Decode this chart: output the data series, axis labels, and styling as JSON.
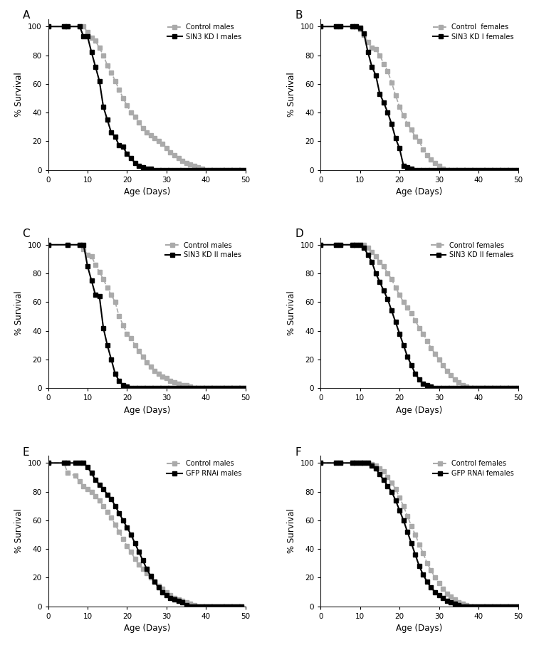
{
  "panels": [
    {
      "label": "A",
      "legend1": "Control males",
      "legend2": "SIN3 KD I males",
      "control": {
        "x": [
          0,
          4,
          5,
          8,
          9,
          10,
          11,
          12,
          13,
          14,
          15,
          16,
          17,
          18,
          19,
          20,
          21,
          22,
          23,
          24,
          25,
          26,
          27,
          28,
          29,
          30,
          31,
          32,
          33,
          34,
          35,
          36,
          37,
          38,
          39,
          40,
          41,
          42,
          43,
          44,
          45,
          46,
          47,
          48,
          49,
          50
        ],
        "y": [
          100,
          100,
          100,
          100,
          100,
          96,
          92,
          90,
          85,
          80,
          73,
          68,
          62,
          56,
          50,
          45,
          40,
          37,
          33,
          29,
          26,
          24,
          22,
          20,
          18,
          15,
          12,
          10,
          8,
          6,
          5,
          4,
          3,
          2,
          1,
          0,
          0,
          0,
          0,
          0,
          0,
          0,
          0,
          0,
          0,
          0
        ]
      },
      "kd": {
        "x": [
          0,
          4,
          5,
          8,
          9,
          10,
          11,
          12,
          13,
          14,
          15,
          16,
          17,
          18,
          19,
          20,
          21,
          22,
          23,
          24,
          25,
          26,
          27,
          28,
          29,
          30,
          31,
          32,
          33,
          34,
          35,
          36,
          37,
          38,
          39,
          40,
          41,
          42,
          43,
          44,
          45,
          46,
          47,
          48,
          49,
          50
        ],
        "y": [
          100,
          100,
          100,
          100,
          93,
          93,
          82,
          72,
          62,
          44,
          35,
          26,
          23,
          17,
          16,
          11,
          8,
          5,
          3,
          2,
          1,
          1,
          0,
          0,
          0,
          0,
          0,
          0,
          0,
          0,
          0,
          0,
          0,
          0,
          0,
          0,
          0,
          0,
          0,
          0,
          0,
          0,
          0,
          0,
          0,
          0
        ]
      },
      "xlim": [
        0,
        50
      ],
      "xlabel": "Age (Days)",
      "ylabel": "% Survival"
    },
    {
      "label": "B",
      "legend1": "Control  females",
      "legend2": "SIN3 KD I females",
      "control": {
        "x": [
          0,
          4,
          5,
          8,
          9,
          10,
          11,
          12,
          13,
          14,
          15,
          16,
          17,
          18,
          19,
          20,
          21,
          22,
          23,
          24,
          25,
          26,
          27,
          28,
          29,
          30,
          31,
          32,
          33,
          34,
          35,
          36,
          37,
          38,
          39,
          40,
          41,
          42,
          43,
          44,
          45,
          46,
          47,
          48,
          49,
          50
        ],
        "y": [
          100,
          100,
          100,
          100,
          100,
          98,
          94,
          89,
          85,
          84,
          80,
          74,
          69,
          61,
          52,
          44,
          38,
          32,
          28,
          23,
          20,
          14,
          10,
          7,
          5,
          3,
          1,
          0,
          0,
          0,
          0,
          0,
          0,
          0,
          0,
          0,
          0,
          0,
          0,
          0,
          0,
          0,
          0,
          0,
          0,
          0
        ]
      },
      "kd": {
        "x": [
          0,
          4,
          5,
          8,
          9,
          10,
          11,
          12,
          13,
          14,
          15,
          16,
          17,
          18,
          19,
          20,
          21,
          22,
          23,
          24,
          25,
          26,
          27,
          28,
          29,
          30,
          31,
          32,
          33,
          34,
          35,
          36,
          37,
          38,
          39,
          40,
          41,
          42,
          43,
          44,
          45,
          46,
          47,
          48,
          49,
          50
        ],
        "y": [
          100,
          100,
          100,
          100,
          100,
          99,
          95,
          82,
          72,
          66,
          53,
          47,
          40,
          32,
          22,
          15,
          3,
          2,
          1,
          0,
          0,
          0,
          0,
          0,
          0,
          0,
          0,
          0,
          0,
          0,
          0,
          0,
          0,
          0,
          0,
          0,
          0,
          0,
          0,
          0,
          0,
          0,
          0,
          0,
          0,
          0
        ]
      },
      "xlim": [
        0,
        50
      ],
      "xlabel": "Age (Days)",
      "ylabel": "% Survival"
    },
    {
      "label": "C",
      "legend1": "Control males",
      "legend2": "SIN3 KD II males",
      "control": {
        "x": [
          0,
          5,
          8,
          9,
          10,
          11,
          12,
          13,
          14,
          15,
          16,
          17,
          18,
          19,
          20,
          21,
          22,
          23,
          24,
          25,
          26,
          27,
          28,
          29,
          30,
          31,
          32,
          33,
          34,
          35,
          36,
          37,
          38,
          39,
          40,
          41,
          42,
          43,
          44,
          45,
          46,
          47,
          48,
          49,
          50
        ],
        "y": [
          100,
          100,
          100,
          97,
          93,
          92,
          86,
          81,
          76,
          70,
          65,
          60,
          50,
          44,
          38,
          35,
          30,
          26,
          22,
          18,
          15,
          12,
          10,
          8,
          7,
          5,
          4,
          3,
          2,
          2,
          1,
          0,
          0,
          0,
          0,
          0,
          0,
          0,
          0,
          0,
          0,
          0,
          0,
          0,
          0
        ]
      },
      "kd": {
        "x": [
          0,
          5,
          8,
          9,
          10,
          11,
          12,
          13,
          14,
          15,
          16,
          17,
          18,
          19,
          20,
          21,
          22,
          23,
          24,
          25,
          26,
          27,
          28,
          29,
          30,
          31,
          32,
          33,
          34,
          35,
          36,
          37,
          38,
          39,
          40,
          41,
          42,
          43,
          44,
          45,
          46,
          47,
          48,
          49,
          50
        ],
        "y": [
          100,
          100,
          100,
          100,
          85,
          75,
          65,
          64,
          42,
          30,
          20,
          10,
          5,
          2,
          1,
          0,
          0,
          0,
          0,
          0,
          0,
          0,
          0,
          0,
          0,
          0,
          0,
          0,
          0,
          0,
          0,
          0,
          0,
          0,
          0,
          0,
          0,
          0,
          0,
          0,
          0,
          0,
          0,
          0,
          0
        ]
      },
      "xlim": [
        0,
        50
      ],
      "xlabel": "Age (Days)",
      "ylabel": "% Survival"
    },
    {
      "label": "D",
      "legend1": "Control females",
      "legend2": "SIN3 KD II females",
      "control": {
        "x": [
          0,
          4,
          5,
          8,
          9,
          10,
          11,
          12,
          13,
          14,
          15,
          16,
          17,
          18,
          19,
          20,
          21,
          22,
          23,
          24,
          25,
          26,
          27,
          28,
          29,
          30,
          31,
          32,
          33,
          34,
          35,
          36,
          37,
          38,
          39,
          40,
          41,
          42,
          43,
          44,
          45,
          46,
          47,
          48,
          49,
          50
        ],
        "y": [
          100,
          100,
          100,
          100,
          100,
          100,
          100,
          98,
          95,
          92,
          88,
          85,
          80,
          76,
          70,
          65,
          60,
          56,
          52,
          47,
          42,
          38,
          33,
          28,
          24,
          20,
          16,
          12,
          9,
          6,
          4,
          2,
          1,
          0,
          0,
          0,
          0,
          0,
          0,
          0,
          0,
          0,
          0,
          0,
          0,
          0
        ]
      },
      "kd": {
        "x": [
          0,
          4,
          5,
          8,
          9,
          10,
          11,
          12,
          13,
          14,
          15,
          16,
          17,
          18,
          19,
          20,
          21,
          22,
          23,
          24,
          25,
          26,
          27,
          28,
          29,
          30,
          31,
          32,
          33,
          34,
          35,
          36,
          37,
          38,
          39,
          40,
          41,
          42,
          43,
          44,
          45,
          46,
          47,
          48,
          49,
          50
        ],
        "y": [
          100,
          100,
          100,
          100,
          100,
          100,
          98,
          93,
          88,
          80,
          74,
          68,
          62,
          54,
          46,
          38,
          30,
          22,
          16,
          10,
          6,
          3,
          2,
          1,
          0,
          0,
          0,
          0,
          0,
          0,
          0,
          0,
          0,
          0,
          0,
          0,
          0,
          0,
          0,
          0,
          0,
          0,
          0,
          0,
          0,
          0
        ]
      },
      "xlim": [
        0,
        50
      ],
      "xlabel": "Age (Days)",
      "ylabel": "% Survival"
    },
    {
      "label": "E",
      "legend1": "Control males",
      "legend2": "GFP RNAi males",
      "control": {
        "x": [
          0,
          4,
          5,
          7,
          8,
          9,
          10,
          11,
          12,
          13,
          14,
          15,
          16,
          17,
          18,
          19,
          20,
          21,
          22,
          23,
          24,
          25,
          26,
          27,
          28,
          29,
          30,
          31,
          32,
          33,
          34,
          35,
          36,
          37,
          38,
          39,
          40,
          41,
          42,
          43,
          44,
          45,
          46,
          47,
          48,
          49
        ],
        "y": [
          100,
          100,
          93,
          91,
          87,
          84,
          82,
          80,
          77,
          74,
          70,
          66,
          62,
          57,
          52,
          47,
          42,
          38,
          33,
          29,
          26,
          23,
          20,
          17,
          14,
          12,
          10,
          8,
          6,
          5,
          4,
          3,
          2,
          1,
          0,
          0,
          0,
          0,
          0,
          0,
          0,
          0,
          0,
          0,
          0,
          0
        ]
      },
      "kd": {
        "x": [
          0,
          4,
          5,
          7,
          8,
          9,
          10,
          11,
          12,
          13,
          14,
          15,
          16,
          17,
          18,
          19,
          20,
          21,
          22,
          23,
          24,
          25,
          26,
          27,
          28,
          29,
          30,
          31,
          32,
          33,
          34,
          35,
          36,
          37,
          38,
          39,
          40,
          41,
          42,
          43,
          44,
          45,
          46,
          47,
          48,
          49
        ],
        "y": [
          100,
          100,
          100,
          100,
          100,
          100,
          97,
          93,
          88,
          85,
          82,
          78,
          75,
          70,
          65,
          60,
          55,
          50,
          44,
          38,
          32,
          26,
          21,
          17,
          13,
          10,
          8,
          6,
          5,
          4,
          3,
          1,
          0,
          0,
          0,
          0,
          0,
          0,
          0,
          0,
          0,
          0,
          0,
          0,
          0,
          0
        ]
      },
      "xlim": [
        0,
        50
      ],
      "xlabel": "Age (Days)",
      "ylabel": "% Survival"
    },
    {
      "label": "F",
      "legend1": "Control females",
      "legend2": "GFP RNAi females",
      "control": {
        "x": [
          0,
          4,
          5,
          8,
          9,
          10,
          11,
          12,
          13,
          14,
          15,
          16,
          17,
          18,
          19,
          20,
          21,
          22,
          23,
          24,
          25,
          26,
          27,
          28,
          29,
          30,
          31,
          32,
          33,
          34,
          35,
          36,
          37,
          38,
          39,
          40,
          41,
          42,
          43,
          44,
          45,
          46,
          47,
          48,
          49,
          50
        ],
        "y": [
          100,
          100,
          100,
          100,
          100,
          100,
          100,
          100,
          99,
          98,
          96,
          94,
          90,
          86,
          82,
          76,
          70,
          63,
          56,
          50,
          43,
          37,
          30,
          25,
          20,
          16,
          12,
          9,
          7,
          5,
          3,
          2,
          1,
          0,
          0,
          0,
          0,
          0,
          0,
          0,
          0,
          0,
          0,
          0,
          0,
          0
        ]
      },
      "kd": {
        "x": [
          0,
          4,
          5,
          8,
          9,
          10,
          11,
          12,
          13,
          14,
          15,
          16,
          17,
          18,
          19,
          20,
          21,
          22,
          23,
          24,
          25,
          26,
          27,
          28,
          29,
          30,
          31,
          32,
          33,
          34,
          35,
          36,
          37,
          38,
          39,
          40,
          41,
          42,
          43,
          44,
          45,
          46,
          47,
          48,
          49,
          50
        ],
        "y": [
          100,
          100,
          100,
          100,
          100,
          100,
          100,
          100,
          98,
          96,
          92,
          88,
          84,
          80,
          74,
          67,
          60,
          52,
          44,
          36,
          28,
          22,
          17,
          13,
          10,
          8,
          6,
          4,
          3,
          2,
          1,
          0,
          0,
          0,
          0,
          0,
          0,
          0,
          0,
          0,
          0,
          0,
          0,
          0,
          0,
          0
        ]
      },
      "xlim": [
        0,
        50
      ],
      "xlabel": "Age (Days)",
      "ylabel": "% Survival"
    }
  ],
  "control_color": "#aaaaaa",
  "kd_color": "#000000",
  "bg_color": "#ffffff",
  "yticks": [
    0,
    20,
    40,
    60,
    80,
    100
  ],
  "xticks": [
    0,
    10,
    20,
    30,
    40,
    50
  ]
}
